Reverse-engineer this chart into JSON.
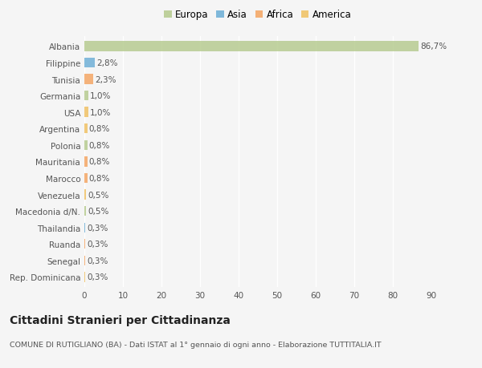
{
  "categories": [
    "Albania",
    "Filippine",
    "Tunisia",
    "Germania",
    "USA",
    "Argentina",
    "Polonia",
    "Mauritania",
    "Marocco",
    "Venezuela",
    "Macedonia d/N.",
    "Thailandia",
    "Ruanda",
    "Senegal",
    "Rep. Dominicana"
  ],
  "values": [
    86.7,
    2.8,
    2.3,
    1.0,
    1.0,
    0.8,
    0.8,
    0.8,
    0.8,
    0.5,
    0.5,
    0.3,
    0.3,
    0.3,
    0.3
  ],
  "labels": [
    "86,7%",
    "2,8%",
    "2,3%",
    "1,0%",
    "1,0%",
    "0,8%",
    "0,8%",
    "0,8%",
    "0,8%",
    "0,5%",
    "0,5%",
    "0,3%",
    "0,3%",
    "0,3%",
    "0,3%"
  ],
  "colors": [
    "#b5ca8d",
    "#6baed6",
    "#f4a460",
    "#b5ca8d",
    "#f0c060",
    "#f0c060",
    "#b5ca8d",
    "#f4a460",
    "#f4a460",
    "#f0c060",
    "#b5ca8d",
    "#6baed6",
    "#f4a460",
    "#f4a460",
    "#f0c060"
  ],
  "legend": [
    {
      "label": "Europa",
      "color": "#b5ca8d"
    },
    {
      "label": "Asia",
      "color": "#6baed6"
    },
    {
      "label": "Africa",
      "color": "#f4a460"
    },
    {
      "label": "America",
      "color": "#f0c060"
    }
  ],
  "xlim": [
    0,
    90
  ],
  "xticks": [
    0,
    10,
    20,
    30,
    40,
    50,
    60,
    70,
    80,
    90
  ],
  "title": "Cittadini Stranieri per Cittadinanza",
  "subtitle": "COMUNE DI RUTIGLIANO (BA) - Dati ISTAT al 1° gennaio di ogni anno - Elaborazione TUTTITALIA.IT",
  "background_color": "#f5f5f5",
  "grid_color": "#ffffff",
  "bar_height": 0.6,
  "label_fontsize": 7.5,
  "tick_fontsize": 7.5,
  "title_fontsize": 10,
  "subtitle_fontsize": 6.8,
  "legend_fontsize": 8.5
}
